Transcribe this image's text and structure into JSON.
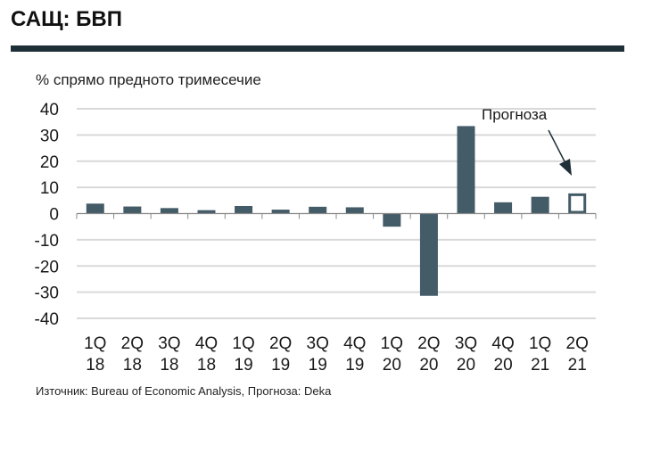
{
  "header": {
    "title": "САЩ: БВП"
  },
  "chart_data": {
    "type": "bar",
    "title": "САЩ: БВП",
    "ylabel": "% спрямо предното тримесечие",
    "xlabel": "",
    "ylim": [
      -40,
      40
    ],
    "yticks": [
      40,
      30,
      20,
      10,
      0,
      -10,
      -20,
      -30,
      -40
    ],
    "grid": true,
    "categories": [
      [
        "1Q",
        "18"
      ],
      [
        "2Q",
        "18"
      ],
      [
        "3Q",
        "18"
      ],
      [
        "4Q",
        "18"
      ],
      [
        "1Q",
        "19"
      ],
      [
        "2Q",
        "19"
      ],
      [
        "3Q",
        "19"
      ],
      [
        "4Q",
        "19"
      ],
      [
        "1Q",
        "20"
      ],
      [
        "2Q",
        "20"
      ],
      [
        "3Q",
        "20"
      ],
      [
        "4Q",
        "20"
      ],
      [
        "1Q",
        "21"
      ],
      [
        "2Q",
        "21"
      ]
    ],
    "values": [
      3.8,
      2.7,
      2.1,
      1.3,
      2.9,
      1.5,
      2.6,
      2.4,
      -5.0,
      -31.4,
      33.4,
      4.3,
      6.4,
      7.7
    ],
    "forecast": [
      false,
      false,
      false,
      false,
      false,
      false,
      false,
      false,
      false,
      false,
      false,
      false,
      false,
      true
    ],
    "annotation": "Прогноза",
    "bar_color": "#445c68",
    "source": "Източник: Bureau of Economic Analysis, Прогноза: Deka"
  }
}
